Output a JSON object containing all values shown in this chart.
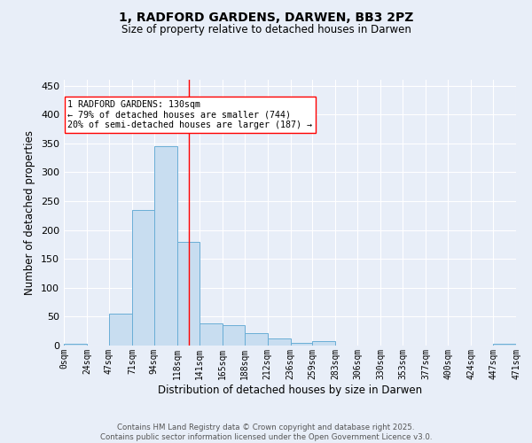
{
  "title1": "1, RADFORD GARDENS, DARWEN, BB3 2PZ",
  "title2": "Size of property relative to detached houses in Darwen",
  "xlabel": "Distribution of detached houses by size in Darwen",
  "ylabel": "Number of detached properties",
  "bar_edges": [
    0,
    24,
    47,
    71,
    94,
    118,
    141,
    165,
    188,
    212,
    236,
    259,
    283,
    306,
    330,
    353,
    377,
    400,
    424,
    447,
    471
  ],
  "bar_heights": [
    3,
    0,
    55,
    235,
    345,
    180,
    38,
    35,
    21,
    12,
    5,
    7,
    0,
    0,
    0,
    0,
    0,
    0,
    0,
    3
  ],
  "bar_color": "#c8ddf0",
  "bar_edge_color": "#6aaed6",
  "vline_x": 130,
  "vline_color": "red",
  "annotation_text": "1 RADFORD GARDENS: 130sqm\n← 79% of detached houses are smaller (744)\n20% of semi-detached houses are larger (187) →",
  "annotation_box_color": "white",
  "annotation_box_edge_color": "red",
  "ylim": [
    0,
    460
  ],
  "yticks": [
    0,
    50,
    100,
    150,
    200,
    250,
    300,
    350,
    400,
    450
  ],
  "tick_labels": [
    "0sqm",
    "24sqm",
    "47sqm",
    "71sqm",
    "94sqm",
    "118sqm",
    "141sqm",
    "165sqm",
    "188sqm",
    "212sqm",
    "236sqm",
    "259sqm",
    "283sqm",
    "306sqm",
    "330sqm",
    "353sqm",
    "377sqm",
    "400sqm",
    "424sqm",
    "447sqm",
    "471sqm"
  ],
  "footer_text": "Contains HM Land Registry data © Crown copyright and database right 2025.\nContains public sector information licensed under the Open Government Licence v3.0.",
  "bg_color": "#e8eef8",
  "grid_color": "white"
}
